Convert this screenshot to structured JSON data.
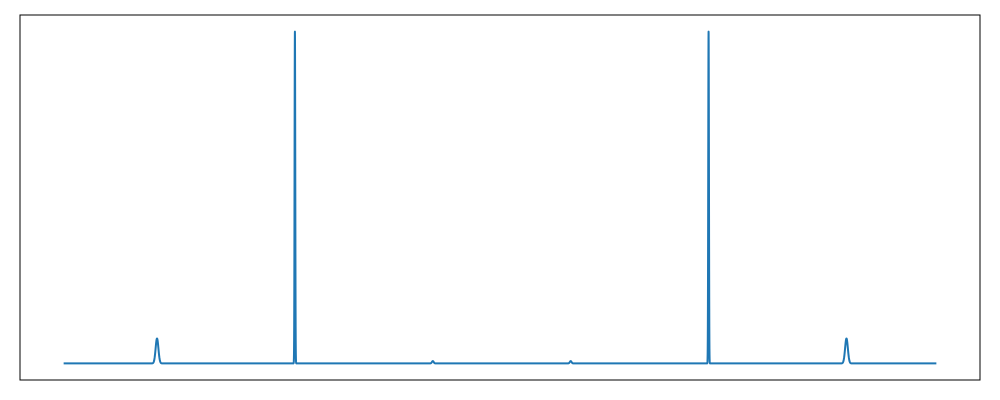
{
  "chart_data": {
    "type": "line",
    "title": "",
    "xlabel": "",
    "ylabel": "",
    "xlim": [
      -0.05,
      1.05
    ],
    "ylim": [
      -0.05,
      1.05
    ],
    "grid": false,
    "axis_ticks": false,
    "series": [
      {
        "color": "#1f77b4",
        "peaks": [
          {
            "x": 0.107,
            "height": 0.075,
            "width": 0.0016
          },
          {
            "x": 0.265,
            "height": 1.0,
            "width": 0.0004
          },
          {
            "x": 0.423,
            "height": 0.007,
            "width": 0.001
          },
          {
            "x": 0.581,
            "height": 0.007,
            "width": 0.001
          },
          {
            "x": 0.739,
            "height": 1.0,
            "width": 0.0004
          },
          {
            "x": 0.897,
            "height": 0.075,
            "width": 0.0016
          }
        ],
        "x_range": [
          0.0,
          1.0
        ],
        "baseline": 0.0
      }
    ]
  }
}
